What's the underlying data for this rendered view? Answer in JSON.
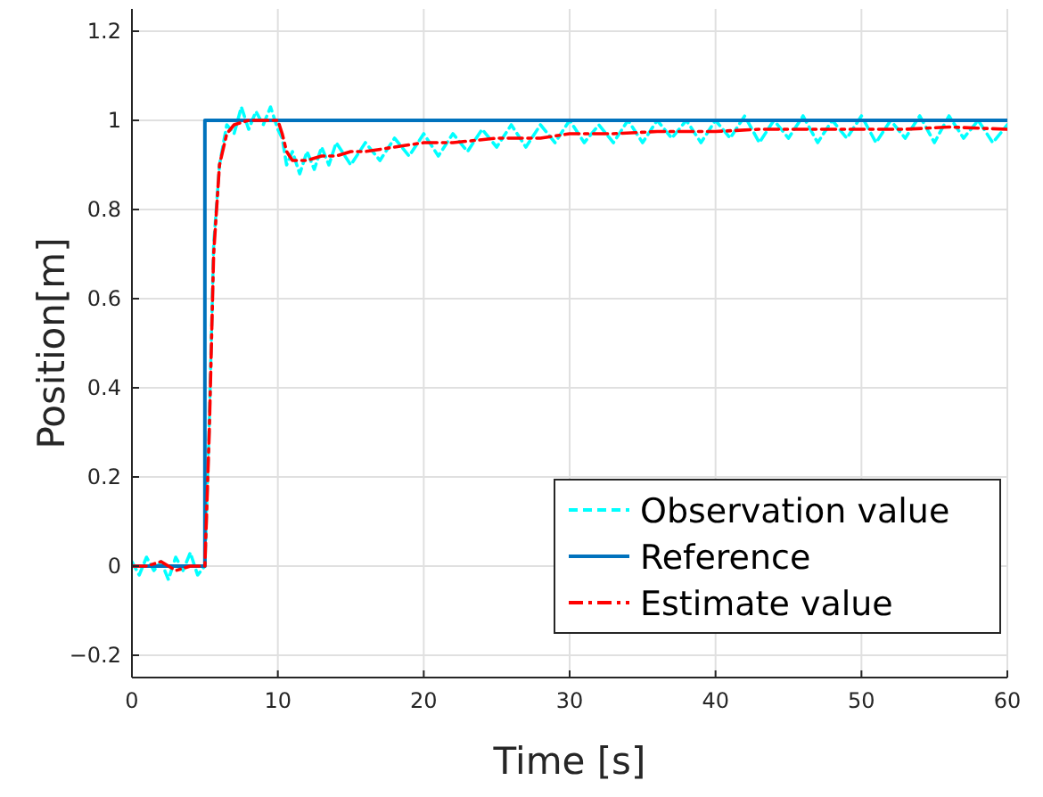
{
  "chart_data": {
    "type": "line",
    "xlabel": "Time [s]",
    "ylabel": "Position[m]",
    "xlim": [
      0,
      60
    ],
    "ylim": [
      -0.25,
      1.25
    ],
    "xticks": [
      0,
      10,
      20,
      30,
      40,
      50,
      60
    ],
    "yticks": [
      {
        "value": -0.2,
        "label": "−0.2"
      },
      0,
      0.2,
      0.4,
      0.6,
      0.8,
      1,
      1.2
    ],
    "grid": true,
    "legend": "bottom right",
    "series": [
      {
        "name": "Observation value",
        "color": "#00ffff",
        "line_style": "dashed",
        "x": [
          0,
          0.5,
          1,
          1.5,
          2,
          2.5,
          3,
          3.5,
          4,
          4.5,
          5,
          5.3,
          5.6,
          6,
          6.5,
          7,
          7.5,
          8,
          8.5,
          9,
          9.5,
          10,
          10.3,
          10.6,
          11,
          11.5,
          12,
          12.5,
          13,
          13.5,
          14,
          15,
          16,
          17,
          18,
          19,
          20,
          21,
          22,
          23,
          24,
          25,
          26,
          27,
          28,
          29,
          30,
          31,
          32,
          33,
          34,
          35,
          36,
          37,
          38,
          39,
          40,
          41,
          42,
          43,
          44,
          45,
          46,
          47,
          48,
          49,
          50,
          51,
          52,
          53,
          54,
          55,
          56,
          57,
          58,
          59,
          60
        ],
        "values": [
          0.01,
          -0.02,
          0.02,
          -0.01,
          0.01,
          -0.03,
          0.02,
          -0.01,
          0.03,
          -0.02,
          0,
          0.32,
          0.72,
          0.9,
          0.99,
          0.97,
          1.03,
          0.98,
          1.02,
          0.99,
          1.03,
          0.98,
          0.96,
          0.9,
          0.93,
          0.88,
          0.93,
          0.89,
          0.94,
          0.9,
          0.95,
          0.9,
          0.95,
          0.91,
          0.96,
          0.92,
          0.97,
          0.92,
          0.97,
          0.93,
          0.98,
          0.94,
          0.99,
          0.94,
          0.99,
          0.95,
          1.0,
          0.95,
          0.99,
          0.95,
          1.0,
          0.95,
          1.0,
          0.96,
          1.0,
          0.95,
          1.0,
          0.96,
          1.01,
          0.95,
          1.0,
          0.96,
          1.01,
          0.95,
          1.0,
          0.96,
          1.01,
          0.95,
          1.0,
          0.96,
          1.01,
          0.95,
          1.01,
          0.96,
          1.0,
          0.95,
          0.99
        ]
      },
      {
        "name": "Reference",
        "color": "#0072bd",
        "line_style": "solid",
        "x": [
          0,
          5,
          5,
          60
        ],
        "values": [
          0,
          0,
          1,
          1
        ]
      },
      {
        "name": "Estimate value",
        "color": "#ff0000",
        "line_style": "dashdot",
        "x": [
          0,
          1,
          2,
          3,
          4,
          5,
          5.3,
          5.6,
          6,
          6.5,
          7,
          8,
          9,
          10,
          10.3,
          10.6,
          11,
          12,
          13,
          14,
          15,
          16,
          18,
          20,
          22,
          25,
          28,
          30,
          33,
          36,
          40,
          43,
          46,
          50,
          53,
          56,
          60
        ],
        "values": [
          0,
          0,
          0.01,
          -0.01,
          0,
          0,
          0.3,
          0.7,
          0.9,
          0.97,
          0.99,
          1.0,
          1.0,
          1.0,
          0.97,
          0.93,
          0.91,
          0.91,
          0.92,
          0.92,
          0.93,
          0.93,
          0.94,
          0.95,
          0.95,
          0.96,
          0.96,
          0.97,
          0.97,
          0.975,
          0.975,
          0.98,
          0.98,
          0.98,
          0.98,
          0.985,
          0.98
        ]
      }
    ]
  }
}
